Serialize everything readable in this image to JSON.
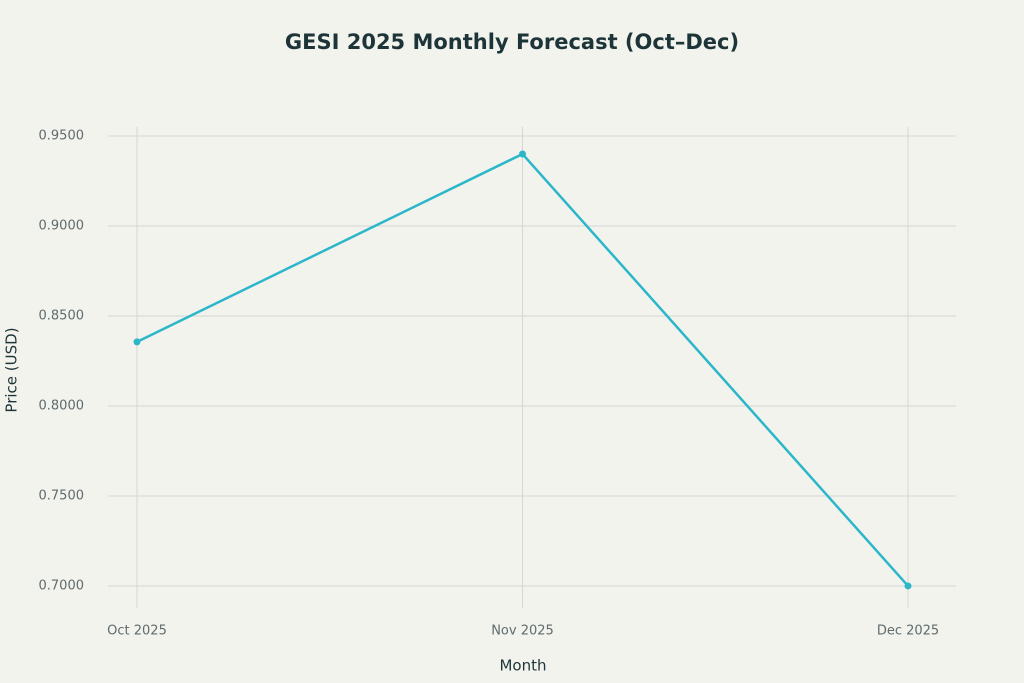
{
  "chart_data": {
    "type": "line",
    "title": "GESI 2025 Monthly Forecast (Oct–Dec)",
    "x_label": "Month",
    "y_label": "Price (USD)",
    "categories": [
      "Oct 2025",
      "Nov 2025",
      "Dec 2025"
    ],
    "values": [
      0.8356,
      0.94,
      0.7
    ],
    "color": "#2bb7c9",
    "ylim": [
      0.6922,
      0.955
    ],
    "yticks": [
      {
        "value": 0.7,
        "label": "0.7000"
      },
      {
        "value": 0.75,
        "label": "0.7500"
      },
      {
        "value": 0.8,
        "label": "0.8000"
      },
      {
        "value": 0.85,
        "label": "0.8500"
      },
      {
        "value": 0.9,
        "label": "0.9000"
      },
      {
        "value": 0.95,
        "label": "0.9500"
      }
    ],
    "grid": true
  }
}
